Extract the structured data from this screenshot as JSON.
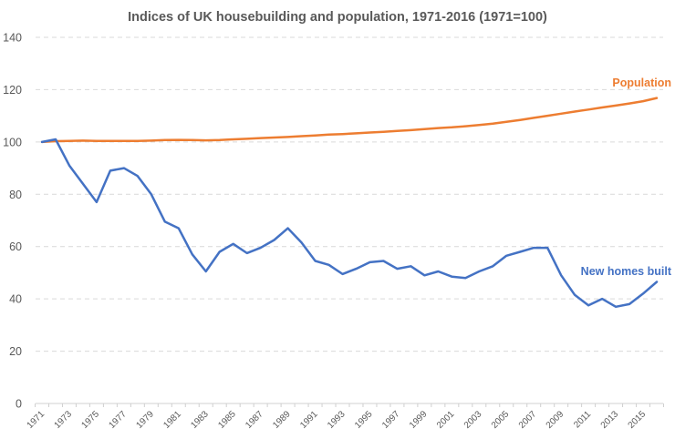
{
  "chart_data": {
    "type": "line",
    "title": "Indices of UK housebuilding and population, 1971-2016  (1971=100)",
    "xlabel": "",
    "ylabel": "",
    "ylim": [
      0,
      140
    ],
    "yticks": [
      0,
      20,
      40,
      60,
      80,
      100,
      120,
      140
    ],
    "grid": true,
    "legend": "inline labels",
    "x": [
      1971,
      1972,
      1973,
      1974,
      1975,
      1976,
      1977,
      1978,
      1979,
      1980,
      1981,
      1982,
      1983,
      1984,
      1985,
      1986,
      1987,
      1988,
      1989,
      1990,
      1991,
      1992,
      1993,
      1994,
      1995,
      1996,
      1997,
      1998,
      1999,
      2000,
      2001,
      2002,
      2003,
      2004,
      2005,
      2006,
      2007,
      2008,
      2009,
      2010,
      2011,
      2012,
      2013,
      2014,
      2015,
      2016
    ],
    "xtick_labels": [
      "1971",
      "1973",
      "1975",
      "1977",
      "1979",
      "1981",
      "1983",
      "1985",
      "1987",
      "1989",
      "1991",
      "1993",
      "1995",
      "1997",
      "1999",
      "2001",
      "2003",
      "2005",
      "2007",
      "2009",
      "2011",
      "2013",
      "2015"
    ],
    "series": [
      {
        "name": "Population",
        "color": "#ed7d31",
        "values": [
          100,
          100.3,
          100.4,
          100.5,
          100.4,
          100.4,
          100.4,
          100.4,
          100.5,
          100.7,
          100.8,
          100.7,
          100.6,
          100.7,
          101.0,
          101.2,
          101.5,
          101.7,
          101.9,
          102.2,
          102.5,
          102.8,
          103.0,
          103.3,
          103.6,
          103.9,
          104.2,
          104.5,
          104.9,
          105.3,
          105.6,
          106.0,
          106.5,
          107.0,
          107.7,
          108.4,
          109.2,
          110.0,
          110.8,
          111.6,
          112.4,
          113.2,
          113.9,
          114.7,
          115.6,
          116.8
        ]
      },
      {
        "name": "New homes built",
        "color": "#4472c4",
        "values": [
          100,
          101,
          91,
          84,
          77,
          89,
          90,
          87,
          80,
          69.5,
          67,
          57,
          50.5,
          58,
          61,
          57.5,
          59.5,
          62.5,
          67,
          61.5,
          54.5,
          53,
          49.5,
          51.5,
          54,
          54.5,
          51.5,
          52.5,
          49,
          50.5,
          48.5,
          48,
          50.5,
          52.5,
          56.5,
          58,
          59.5,
          59.5,
          49,
          41.5,
          37.5,
          40,
          37,
          38,
          42,
          46.5
        ]
      }
    ]
  }
}
